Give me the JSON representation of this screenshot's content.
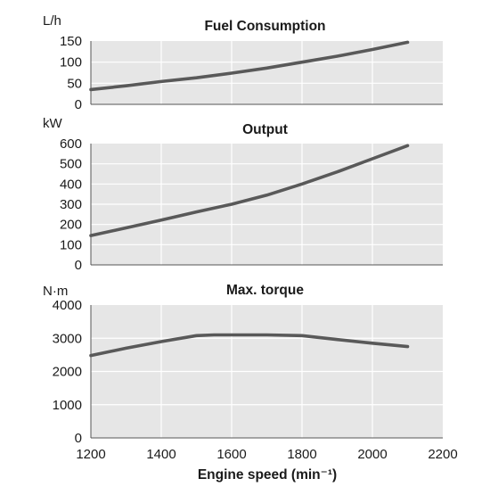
{
  "chart_data": [
    {
      "type": "line",
      "title": "Fuel Consumption",
      "ylabel": "L/h",
      "xlabel": "",
      "xlim": [
        1200,
        2200
      ],
      "ylim": [
        0,
        150
      ],
      "x_ticks": [
        1200,
        1400,
        1600,
        1800,
        2000,
        2200
      ],
      "y_ticks": [
        0,
        50,
        100,
        150
      ],
      "grid": true,
      "color": "#595959",
      "series": [
        {
          "x": [
            1200,
            1300,
            1400,
            1500,
            1600,
            1700,
            1800,
            1900,
            2000,
            2100
          ],
          "y": [
            35,
            44,
            54,
            63,
            74,
            86,
            100,
            114,
            130,
            147
          ]
        }
      ]
    },
    {
      "type": "line",
      "title": "Output",
      "ylabel": "kW",
      "xlabel": "",
      "xlim": [
        1200,
        2200
      ],
      "ylim": [
        0,
        600
      ],
      "x_ticks": [
        1200,
        1400,
        1600,
        1800,
        2000,
        2200
      ],
      "y_ticks": [
        0,
        100,
        200,
        300,
        400,
        500,
        600
      ],
      "grid": true,
      "color": "#595959",
      "series": [
        {
          "x": [
            1200,
            1300,
            1400,
            1500,
            1600,
            1700,
            1800,
            1900,
            2000,
            2100
          ],
          "y": [
            145,
            183,
            222,
            262,
            300,
            345,
            400,
            460,
            525,
            590
          ]
        }
      ]
    },
    {
      "type": "line",
      "title": "Max. torque",
      "ylabel": "N·m",
      "xlabel": "Engine speed (min⁻¹)",
      "xlim": [
        1200,
        2200
      ],
      "ylim": [
        0,
        4000
      ],
      "x_ticks": [
        1200,
        1400,
        1600,
        1800,
        2000,
        2200
      ],
      "y_ticks": [
        0,
        1000,
        2000,
        3000,
        4000
      ],
      "grid": true,
      "color": "#595959",
      "series": [
        {
          "x": [
            1200,
            1300,
            1400,
            1500,
            1550,
            1600,
            1700,
            1800,
            1900,
            2000,
            2100
          ],
          "y": [
            2480,
            2700,
            2900,
            3080,
            3100,
            3100,
            3100,
            3080,
            2960,
            2850,
            2750
          ]
        }
      ]
    }
  ]
}
